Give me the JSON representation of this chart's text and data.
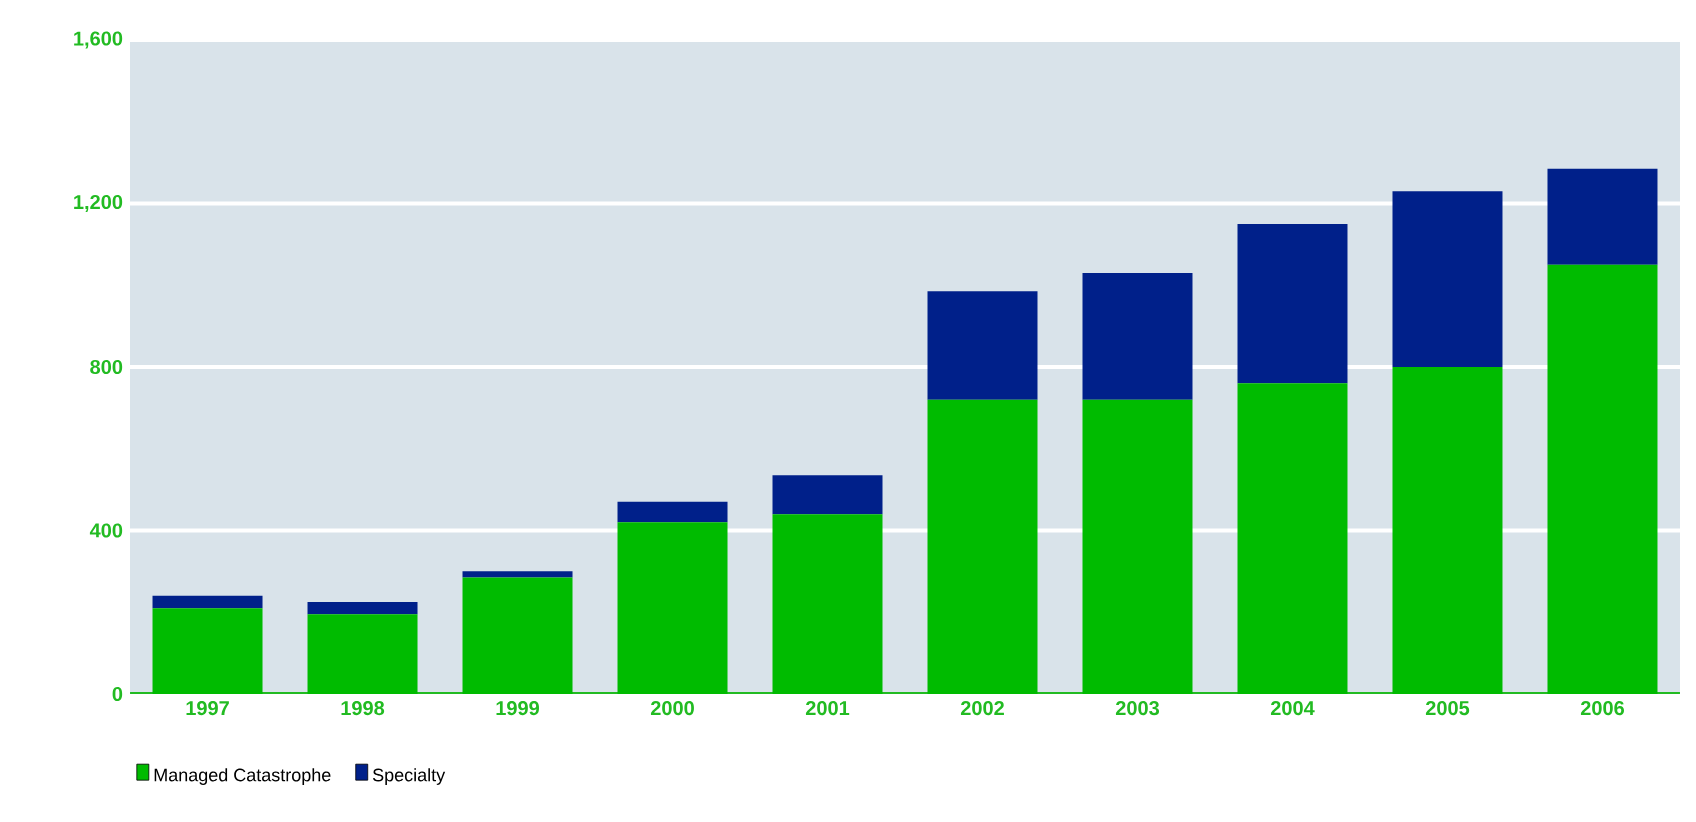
{
  "chart_data": {
    "type": "bar",
    "stacked": true,
    "categories": [
      "1997",
      "1998",
      "1999",
      "2000",
      "2001",
      "2002",
      "2003",
      "2004",
      "2005",
      "2006"
    ],
    "series": [
      {
        "name": "Managed Catastrophe",
        "color": "#00bb00",
        "values": [
          210,
          195,
          285,
          420,
          440,
          720,
          720,
          760,
          800,
          1050
        ]
      },
      {
        "name": "Specialty",
        "color": "#00208a",
        "values": [
          30,
          30,
          15,
          50,
          95,
          265,
          310,
          390,
          430,
          235
        ]
      }
    ],
    "ylim": [
      0,
      1600
    ],
    "yticks": [
      0,
      400,
      800,
      {
        "value": 1200,
        "label": "1,200"
      },
      {
        "value": 1600,
        "label": "1,600"
      }
    ],
    "grid": "y",
    "legend": "bottom left"
  }
}
